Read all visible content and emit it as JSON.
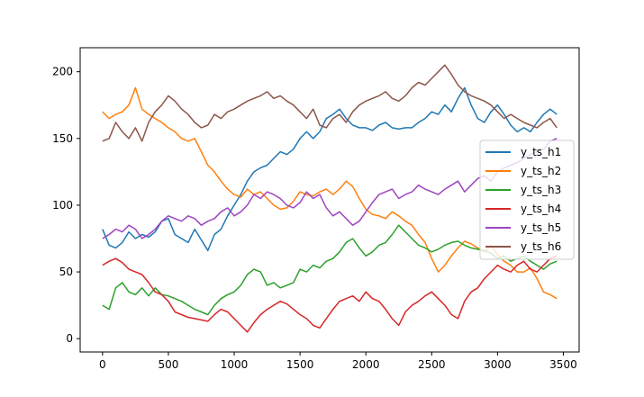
{
  "chart_data": {
    "type": "line",
    "title": "",
    "xlabel": "",
    "ylabel": "",
    "xlim": [
      -170,
      3620
    ],
    "ylim": [
      -10,
      218
    ],
    "x_ticks": [
      0,
      500,
      1000,
      1500,
      2000,
      2500,
      3000,
      3500
    ],
    "y_ticks": [
      0,
      50,
      100,
      150,
      200
    ],
    "grid": false,
    "legend": "center-right",
    "series": [
      {
        "name": "y_ts_h1",
        "color": "#1f77b4",
        "x": [
          0,
          50,
          100,
          150,
          200,
          250,
          300,
          350,
          400,
          450,
          500,
          550,
          600,
          650,
          700,
          750,
          800,
          850,
          900,
          950,
          1000,
          1050,
          1100,
          1150,
          1200,
          1250,
          1300,
          1350,
          1400,
          1450,
          1500,
          1550,
          1600,
          1650,
          1700,
          1750,
          1800,
          1850,
          1900,
          1950,
          2000,
          2050,
          2100,
          2150,
          2200,
          2250,
          2300,
          2350,
          2400,
          2450,
          2500,
          2550,
          2600,
          2650,
          2700,
          2750,
          2800,
          2850,
          2900,
          2950,
          3000,
          3050,
          3100,
          3150,
          3200,
          3250,
          3300,
          3350,
          3400,
          3450
        ],
        "values": [
          82,
          70,
          68,
          72,
          80,
          75,
          78,
          76,
          80,
          88,
          90,
          78,
          75,
          72,
          82,
          74,
          66,
          78,
          82,
          92,
          100,
          108,
          118,
          125,
          128,
          130,
          135,
          140,
          138,
          142,
          150,
          155,
          150,
          155,
          165,
          168,
          172,
          165,
          160,
          158,
          158,
          156,
          160,
          162,
          158,
          157,
          158,
          158,
          162,
          165,
          170,
          168,
          175,
          170,
          180,
          188,
          175,
          165,
          162,
          170,
          175,
          168,
          160,
          155,
          158,
          155,
          162,
          168,
          172,
          168
        ]
      },
      {
        "name": "y_ts_h2",
        "color": "#ff7f0e",
        "x": [
          0,
          50,
          100,
          150,
          200,
          250,
          300,
          350,
          400,
          450,
          500,
          550,
          600,
          650,
          700,
          750,
          800,
          850,
          900,
          950,
          1000,
          1050,
          1100,
          1150,
          1200,
          1250,
          1300,
          1350,
          1400,
          1450,
          1500,
          1550,
          1600,
          1650,
          1700,
          1750,
          1800,
          1850,
          1900,
          1950,
          2000,
          2050,
          2100,
          2150,
          2200,
          2250,
          2300,
          2350,
          2400,
          2450,
          2500,
          2550,
          2600,
          2650,
          2700,
          2750,
          2800,
          2850,
          2900,
          2950,
          3000,
          3050,
          3100,
          3150,
          3200,
          3250,
          3300,
          3350,
          3400,
          3450
        ],
        "values": [
          170,
          165,
          168,
          170,
          175,
          188,
          172,
          168,
          165,
          162,
          158,
          155,
          150,
          148,
          150,
          140,
          130,
          125,
          118,
          112,
          108,
          106,
          112,
          108,
          110,
          105,
          100,
          97,
          98,
          103,
          110,
          108,
          107,
          110,
          112,
          108,
          112,
          118,
          114,
          105,
          97,
          93,
          92,
          90,
          95,
          92,
          88,
          85,
          78,
          72,
          60,
          50,
          55,
          62,
          68,
          73,
          71,
          68,
          65,
          70,
          63,
          58,
          55,
          50,
          50,
          53,
          45,
          35,
          33,
          30
        ]
      },
      {
        "name": "y_ts_h3",
        "color": "#2ca02c",
        "x": [
          0,
          50,
          100,
          150,
          200,
          250,
          300,
          350,
          400,
          450,
          500,
          550,
          600,
          650,
          700,
          750,
          800,
          850,
          900,
          950,
          1000,
          1050,
          1100,
          1150,
          1200,
          1250,
          1300,
          1350,
          1400,
          1450,
          1500,
          1550,
          1600,
          1650,
          1700,
          1750,
          1800,
          1850,
          1900,
          1950,
          2000,
          2050,
          2100,
          2150,
          2200,
          2250,
          2300,
          2350,
          2400,
          2450,
          2500,
          2550,
          2600,
          2650,
          2700,
          2750,
          2800,
          2850,
          2900,
          2950,
          3000,
          3050,
          3100,
          3150,
          3200,
          3250,
          3300,
          3350,
          3400,
          3450
        ],
        "values": [
          25,
          22,
          38,
          42,
          35,
          33,
          38,
          32,
          38,
          33,
          32,
          30,
          28,
          25,
          22,
          20,
          18,
          25,
          30,
          33,
          35,
          40,
          48,
          52,
          50,
          40,
          42,
          38,
          40,
          42,
          52,
          50,
          55,
          53,
          58,
          60,
          65,
          72,
          75,
          68,
          62,
          65,
          70,
          72,
          78,
          85,
          80,
          75,
          70,
          68,
          65,
          67,
          70,
          72,
          73,
          70,
          68,
          67,
          66,
          64,
          60,
          62,
          58,
          60,
          62,
          58,
          55,
          52,
          56,
          58
        ]
      },
      {
        "name": "y_ts_h4",
        "color": "#d62728",
        "x": [
          0,
          50,
          100,
          150,
          200,
          250,
          300,
          350,
          400,
          450,
          500,
          550,
          600,
          650,
          700,
          750,
          800,
          850,
          900,
          950,
          1000,
          1050,
          1100,
          1150,
          1200,
          1250,
          1300,
          1350,
          1400,
          1450,
          1500,
          1550,
          1600,
          1650,
          1700,
          1750,
          1800,
          1850,
          1900,
          1950,
          2000,
          2050,
          2100,
          2150,
          2200,
          2250,
          2300,
          2350,
          2400,
          2450,
          2500,
          2550,
          2600,
          2650,
          2700,
          2750,
          2800,
          2850,
          2900,
          2950,
          3000,
          3050,
          3100,
          3150,
          3200,
          3250,
          3300,
          3350,
          3400,
          3450
        ],
        "values": [
          55,
          58,
          60,
          57,
          52,
          50,
          48,
          42,
          35,
          33,
          28,
          20,
          18,
          16,
          15,
          14,
          13,
          18,
          22,
          20,
          15,
          10,
          5,
          12,
          18,
          22,
          25,
          28,
          26,
          22,
          18,
          15,
          10,
          8,
          15,
          22,
          28,
          30,
          32,
          28,
          35,
          30,
          28,
          22,
          15,
          10,
          20,
          25,
          28,
          32,
          35,
          30,
          25,
          18,
          15,
          28,
          35,
          38,
          45,
          50,
          55,
          52,
          50,
          55,
          58,
          52,
          50,
          55,
          60,
          62
        ]
      },
      {
        "name": "y_ts_h5",
        "color": "#9e44c1",
        "x": [
          0,
          50,
          100,
          150,
          200,
          250,
          300,
          350,
          400,
          450,
          500,
          550,
          600,
          650,
          700,
          750,
          800,
          850,
          900,
          950,
          1000,
          1050,
          1100,
          1150,
          1200,
          1250,
          1300,
          1350,
          1400,
          1450,
          1500,
          1550,
          1600,
          1650,
          1700,
          1750,
          1800,
          1850,
          1900,
          1950,
          2000,
          2050,
          2100,
          2150,
          2200,
          2250,
          2300,
          2350,
          2400,
          2450,
          2500,
          2550,
          2600,
          2650,
          2700,
          2750,
          2800,
          2850,
          2900,
          2950,
          3000,
          3050,
          3100,
          3150,
          3200,
          3250,
          3300,
          3350,
          3400,
          3450
        ],
        "values": [
          75,
          78,
          82,
          80,
          85,
          82,
          75,
          78,
          82,
          88,
          92,
          90,
          88,
          92,
          90,
          85,
          88,
          90,
          95,
          98,
          92,
          95,
          100,
          108,
          105,
          110,
          108,
          105,
          100,
          98,
          102,
          110,
          105,
          108,
          98,
          92,
          95,
          90,
          85,
          88,
          95,
          102,
          108,
          110,
          112,
          105,
          108,
          110,
          115,
          112,
          110,
          108,
          112,
          115,
          118,
          110,
          115,
          120,
          122,
          118,
          125,
          128,
          130,
          132,
          135,
          138,
          140,
          142,
          148,
          150
        ]
      },
      {
        "name": "y_ts_h6",
        "color": "#8c564b",
        "x": [
          0,
          50,
          100,
          150,
          200,
          250,
          300,
          350,
          400,
          450,
          500,
          550,
          600,
          650,
          700,
          750,
          800,
          850,
          900,
          950,
          1000,
          1050,
          1100,
          1150,
          1200,
          1250,
          1300,
          1350,
          1400,
          1450,
          1500,
          1550,
          1600,
          1650,
          1700,
          1750,
          1800,
          1850,
          1900,
          1950,
          2000,
          2050,
          2100,
          2150,
          2200,
          2250,
          2300,
          2350,
          2400,
          2450,
          2500,
          2550,
          2600,
          2650,
          2700,
          2750,
          2800,
          2850,
          2900,
          2950,
          3000,
          3050,
          3100,
          3150,
          3200,
          3250,
          3300,
          3350,
          3400,
          3450
        ],
        "values": [
          148,
          150,
          162,
          155,
          150,
          158,
          148,
          162,
          170,
          175,
          182,
          178,
          172,
          168,
          162,
          158,
          160,
          168,
          165,
          170,
          172,
          175,
          178,
          180,
          182,
          185,
          180,
          182,
          178,
          175,
          170,
          165,
          172,
          160,
          158,
          165,
          168,
          162,
          170,
          175,
          178,
          180,
          182,
          185,
          180,
          178,
          182,
          188,
          192,
          190,
          195,
          200,
          205,
          198,
          190,
          185,
          182,
          180,
          178,
          175,
          170,
          165,
          168,
          165,
          162,
          160,
          158,
          162,
          165,
          158
        ]
      }
    ]
  }
}
